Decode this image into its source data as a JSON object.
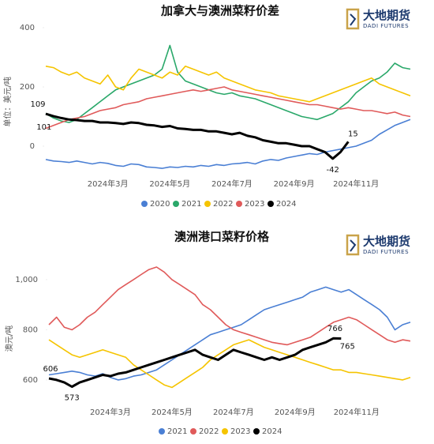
{
  "chart_data": [
    {
      "type": "line",
      "title": "加拿大与澳洲菜籽价差",
      "logo": {
        "name": "大地期货",
        "sub": "DADI FUTURES"
      },
      "ylabel": "单位：美元/吨",
      "ylim": [
        -100,
        400
      ],
      "yticks": [
        0,
        200,
        400
      ],
      "grid": false,
      "categories": [
        null,
        null,
        null,
        null,
        null,
        null,
        null,
        null,
        "2024年3月",
        null,
        null,
        null,
        null,
        null,
        null,
        null,
        "2024年5月",
        null,
        null,
        null,
        null,
        null,
        null,
        null,
        "2024年7月",
        null,
        null,
        null,
        null,
        null,
        null,
        null,
        "2024年9月",
        null,
        null,
        null,
        null,
        null,
        null,
        null,
        "2024年11月",
        null,
        null,
        null,
        null,
        null,
        null,
        null
      ],
      "series": [
        {
          "name": "2020",
          "color": "#4a7fd4",
          "values": [
            -45,
            -50,
            -52,
            -55,
            -50,
            -55,
            -60,
            -55,
            -58,
            -65,
            -68,
            -60,
            -62,
            -70,
            -72,
            -75,
            -70,
            -72,
            -68,
            -70,
            -65,
            -68,
            -62,
            -65,
            -60,
            -58,
            -55,
            -60,
            -50,
            -45,
            -48,
            -40,
            -35,
            -30,
            -25,
            -28,
            -20,
            -15,
            -10,
            -5,
            0,
            10,
            20,
            40,
            55,
            70,
            80,
            90
          ]
        },
        {
          "name": "2021",
          "color": "#2aa86a",
          "values": [
            110,
            95,
            85,
            80,
            90,
            110,
            130,
            150,
            170,
            190,
            200,
            210,
            220,
            230,
            240,
            260,
            340,
            250,
            220,
            210,
            200,
            190,
            180,
            175,
            180,
            170,
            165,
            160,
            150,
            140,
            130,
            120,
            110,
            100,
            95,
            90,
            100,
            110,
            130,
            150,
            180,
            200,
            220,
            230,
            250,
            280,
            265,
            260
          ]
        },
        {
          "name": "2022",
          "color": "#f5c400",
          "values": [
            270,
            265,
            250,
            240,
            250,
            230,
            220,
            210,
            240,
            200,
            190,
            230,
            260,
            250,
            240,
            230,
            250,
            240,
            270,
            260,
            250,
            240,
            250,
            230,
            220,
            210,
            200,
            190,
            185,
            180,
            170,
            165,
            160,
            155,
            150,
            160,
            170,
            180,
            190,
            200,
            210,
            220,
            230,
            210,
            200,
            190,
            180,
            170
          ]
        },
        {
          "name": "2023",
          "color": "#e05a5a",
          "values": [
            60,
            70,
            80,
            90,
            95,
            100,
            110,
            120,
            125,
            130,
            140,
            145,
            150,
            160,
            165,
            170,
            175,
            180,
            185,
            190,
            185,
            190,
            195,
            200,
            190,
            185,
            180,
            175,
            170,
            165,
            160,
            155,
            150,
            145,
            140,
            140,
            135,
            130,
            125,
            130,
            125,
            120,
            120,
            115,
            110,
            115,
            105,
            100
          ]
        },
        {
          "name": "2024",
          "color": "#000000",
          "width": 3,
          "values": [
            109,
            101,
            95,
            90,
            88,
            85,
            85,
            80,
            80,
            78,
            75,
            80,
            78,
            72,
            70,
            65,
            68,
            60,
            58,
            55,
            55,
            50,
            50,
            45,
            40,
            45,
            35,
            30,
            20,
            15,
            10,
            10,
            5,
            0,
            0,
            -10,
            -20,
            -42,
            -20,
            15,
            null,
            null,
            null,
            null,
            null,
            null,
            null,
            null
          ],
          "value_labels": [
            "109",
            "101",
            null,
            null,
            null,
            null,
            null,
            null,
            null,
            null,
            null,
            null,
            null,
            null,
            null,
            null,
            null,
            null,
            null,
            null,
            null,
            null,
            null,
            null,
            null,
            null,
            null,
            null,
            null,
            null,
            null,
            null,
            null,
            null,
            null,
            null,
            null,
            "-42",
            null,
            "15",
            null,
            null,
            null,
            null,
            null,
            null,
            null,
            null
          ]
        }
      ]
    },
    {
      "type": "line",
      "title": "澳洲港口菜籽价格",
      "logo": {
        "name": "大地期货",
        "sub": "DADI FUTURES"
      },
      "ylabel": "澳元/吨",
      "ylim": [
        480,
        1050
      ],
      "yticks": [
        600,
        800,
        {
          "value": 1000,
          "label": "1,000"
        }
      ],
      "grid": false,
      "categories": [
        null,
        null,
        null,
        null,
        null,
        null,
        null,
        null,
        "2024年3月",
        null,
        null,
        null,
        null,
        null,
        null,
        null,
        "2024年5月",
        null,
        null,
        null,
        null,
        null,
        null,
        null,
        "2024年7月",
        null,
        null,
        null,
        null,
        null,
        null,
        null,
        "2024年9月",
        null,
        null,
        null,
        null,
        null,
        null,
        null,
        "2024年11月",
        null,
        null,
        null,
        null,
        null,
        null,
        null
      ],
      "series": [
        {
          "name": "2021",
          "color": "#4a7fd4",
          "values": [
            620,
            625,
            630,
            635,
            630,
            620,
            615,
            625,
            610,
            600,
            605,
            615,
            620,
            630,
            640,
            660,
            680,
            700,
            720,
            740,
            760,
            780,
            790,
            800,
            810,
            820,
            840,
            860,
            880,
            890,
            900,
            910,
            920,
            930,
            950,
            960,
            970,
            960,
            950,
            960,
            940,
            920,
            900,
            880,
            850,
            800,
            820,
            830
          ]
        },
        {
          "name": "2022",
          "color": "#e05a5a",
          "values": [
            820,
            850,
            810,
            800,
            820,
            850,
            870,
            900,
            930,
            960,
            980,
            1000,
            1020,
            1040,
            1050,
            1030,
            1000,
            980,
            960,
            940,
            900,
            880,
            850,
            820,
            800,
            790,
            780,
            770,
            760,
            750,
            745,
            740,
            750,
            760,
            770,
            790,
            810,
            830,
            840,
            850,
            840,
            820,
            800,
            780,
            760,
            750,
            760,
            755
          ]
        },
        {
          "name": "2023",
          "color": "#f5c400",
          "values": [
            760,
            740,
            720,
            700,
            690,
            700,
            710,
            720,
            710,
            700,
            690,
            660,
            640,
            620,
            600,
            580,
            570,
            590,
            610,
            630,
            650,
            680,
            700,
            720,
            740,
            750,
            760,
            745,
            730,
            720,
            710,
            700,
            690,
            680,
            670,
            660,
            650,
            640,
            640,
            630,
            630,
            625,
            620,
            615,
            610,
            605,
            600,
            610
          ]
        },
        {
          "name": "2024",
          "color": "#000000",
          "width": 3,
          "values": [
            606,
            600,
            590,
            573,
            590,
            600,
            610,
            620,
            615,
            625,
            630,
            640,
            650,
            660,
            670,
            680,
            690,
            700,
            710,
            720,
            700,
            690,
            680,
            700,
            720,
            710,
            700,
            690,
            680,
            690,
            680,
            690,
            700,
            720,
            730,
            740,
            750,
            766,
            765,
            null,
            null,
            null,
            null,
            null,
            null,
            null,
            null,
            null
          ],
          "value_labels": [
            "606",
            null,
            null,
            "573",
            null,
            null,
            null,
            null,
            null,
            null,
            null,
            null,
            null,
            null,
            null,
            null,
            null,
            null,
            null,
            null,
            null,
            null,
            null,
            null,
            null,
            null,
            null,
            null,
            null,
            null,
            null,
            null,
            null,
            null,
            null,
            null,
            null,
            "766",
            "765",
            null,
            null,
            null,
            null,
            null,
            null,
            null,
            null,
            null
          ]
        }
      ]
    }
  ]
}
